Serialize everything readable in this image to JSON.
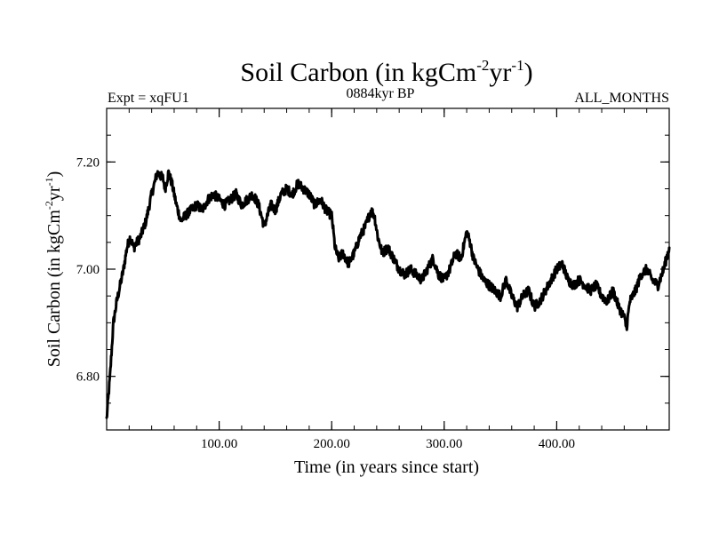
{
  "chart_data": {
    "type": "line",
    "title": {
      "main": "Soil Carbon (in kgCm",
      "sup1": "-2",
      "mid": "yr",
      "sup2": "-1",
      "end": ")"
    },
    "subtitle_left": "Expt = xqFU1",
    "subtitle_center": "0884kyr BP",
    "subtitle_right": "ALL_MONTHS",
    "xlabel": "Time (in years since start)",
    "ylabel": {
      "main": "Soil Carbon (in kgCm",
      "sup1": "-2",
      "mid": "yr",
      "sup2": "-1",
      "end": ")"
    },
    "xlim": [
      0,
      500
    ],
    "ylim": [
      6.7,
      7.3
    ],
    "x_ticks": [
      {
        "value": 100,
        "label": "100.00"
      },
      {
        "value": 200,
        "label": "200.00"
      },
      {
        "value": 300,
        "label": "300.00"
      },
      {
        "value": 400,
        "label": "400.00"
      }
    ],
    "y_ticks": [
      {
        "value": 6.8,
        "label": "6.80"
      },
      {
        "value": 7.0,
        "label": "7.00"
      },
      {
        "value": 7.2,
        "label": "7.20"
      }
    ],
    "x_minor_step": 20,
    "y_minor_step": 0.05,
    "series": [
      {
        "name": "Soil Carbon",
        "color": "#000000",
        "x": [
          0,
          3,
          6,
          9,
          12,
          15,
          18,
          21,
          24,
          27,
          30,
          35,
          40,
          45,
          50,
          52,
          55,
          58,
          62,
          66,
          70,
          75,
          80,
          85,
          90,
          95,
          100,
          105,
          110,
          115,
          120,
          125,
          130,
          135,
          140,
          143,
          146,
          150,
          155,
          160,
          165,
          170,
          175,
          180,
          185,
          190,
          195,
          200,
          203,
          206,
          210,
          215,
          220,
          225,
          230,
          235,
          238,
          241,
          245,
          250,
          255,
          260,
          265,
          270,
          275,
          280,
          285,
          290,
          295,
          300,
          305,
          310,
          315,
          320,
          323,
          326,
          330,
          335,
          340,
          345,
          350,
          355,
          360,
          365,
          370,
          375,
          380,
          385,
          390,
          395,
          400,
          405,
          410,
          415,
          420,
          425,
          430,
          435,
          440,
          445,
          450,
          455,
          460,
          462,
          465,
          470,
          475,
          480,
          485,
          490,
          495,
          500
        ],
        "y": [
          6.72,
          6.8,
          6.9,
          6.94,
          6.97,
          7.0,
          7.04,
          7.06,
          7.04,
          7.05,
          7.06,
          7.09,
          7.14,
          7.18,
          7.17,
          7.15,
          7.18,
          7.16,
          7.12,
          7.09,
          7.1,
          7.11,
          7.12,
          7.11,
          7.13,
          7.14,
          7.13,
          7.12,
          7.13,
          7.14,
          7.12,
          7.13,
          7.14,
          7.12,
          7.08,
          7.1,
          7.12,
          7.11,
          7.14,
          7.15,
          7.14,
          7.16,
          7.15,
          7.14,
          7.12,
          7.13,
          7.11,
          7.1,
          7.04,
          7.02,
          7.03,
          7.01,
          7.03,
          7.06,
          7.08,
          7.11,
          7.1,
          7.06,
          7.03,
          7.04,
          7.02,
          7.0,
          6.99,
          7.0,
          6.99,
          6.98,
          7.0,
          7.02,
          6.99,
          6.98,
          7.0,
          7.03,
          7.02,
          7.07,
          7.05,
          7.02,
          7.0,
          6.98,
          6.97,
          6.96,
          6.95,
          6.98,
          6.95,
          6.93,
          6.95,
          6.96,
          6.93,
          6.94,
          6.96,
          6.98,
          7.0,
          7.01,
          6.98,
          6.97,
          6.98,
          6.97,
          6.96,
          6.97,
          6.95,
          6.94,
          6.96,
          6.93,
          6.91,
          6.89,
          6.94,
          6.96,
          6.99,
          7.0,
          6.98,
          6.97,
          7.0,
          7.04
        ]
      }
    ]
  }
}
